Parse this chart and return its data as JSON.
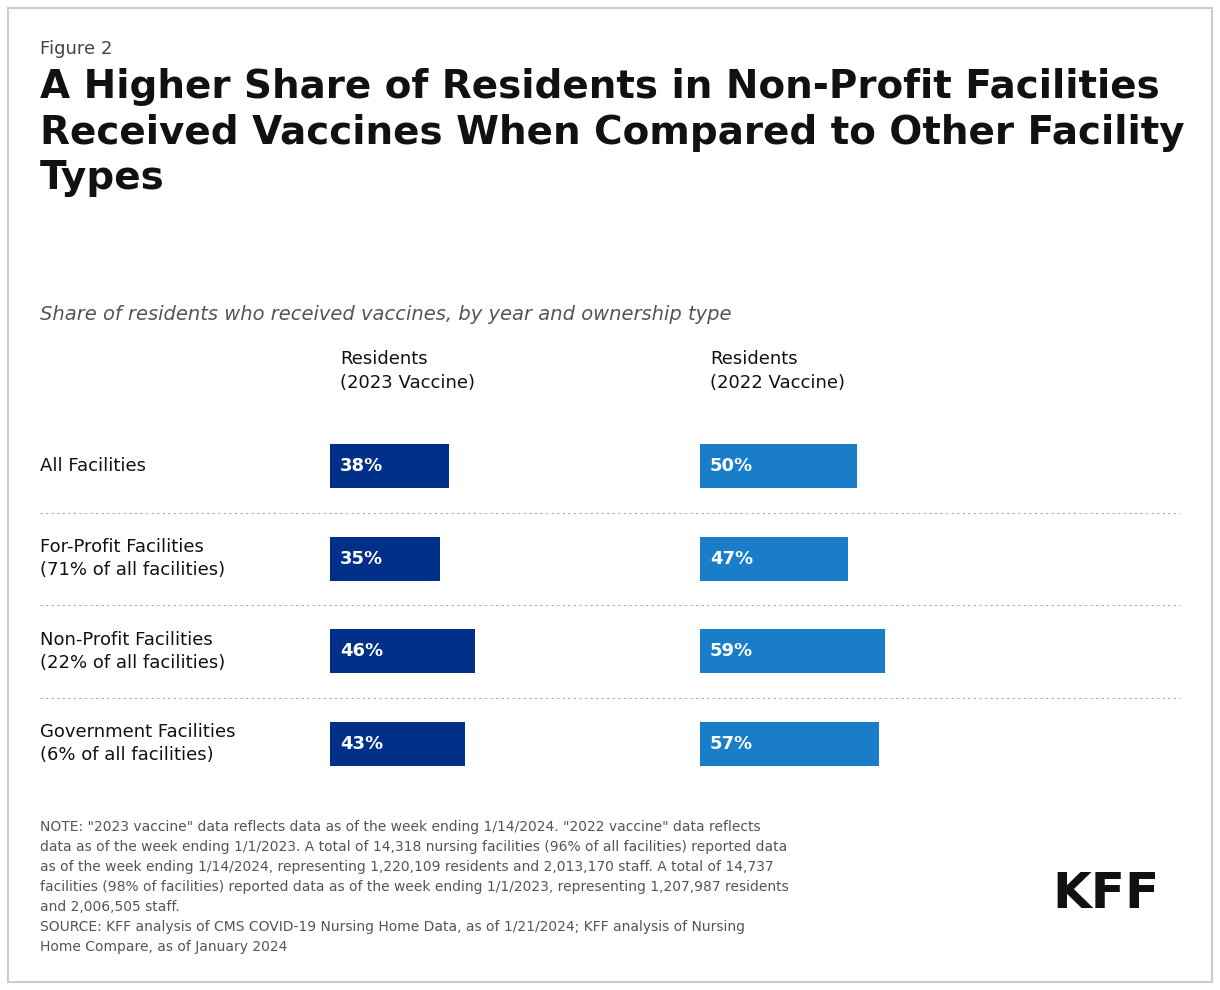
{
  "figure_label": "Figure 2",
  "title": "A Higher Share of Residents in Non-Profit Facilities\nReceived Vaccines When Compared to Other Facility\nTypes",
  "subtitle": "Share of residents who received vaccines, by year and ownership type",
  "categories": [
    "All Facilities",
    "For-Profit Facilities\n(71% of all facilities)",
    "Non-Profit Facilities\n(22% of all facilities)",
    "Government Facilities\n(6% of all facilities)"
  ],
  "col1_label": "Residents\n(2023 Vaccine)",
  "col2_label": "Residents\n(2022 Vaccine)",
  "values_2023": [
    38,
    35,
    46,
    43
  ],
  "values_2022": [
    50,
    47,
    59,
    57
  ],
  "labels_2023": [
    "38%",
    "35%",
    "46%",
    "43%"
  ],
  "labels_2022": [
    "50%",
    "47%",
    "59%",
    "57%"
  ],
  "color_2023": "#003087",
  "color_2022": "#1a7dc9",
  "background_color": "#ffffff",
  "note_text": "NOTE: \"2023 vaccine\" data reflects data as of the week ending 1/14/2024. \"2022 vaccine\" data reflects\ndata as of the week ending 1/1/2023. A total of 14,318 nursing facilities (96% of all facilities) reported data\nas of the week ending 1/14/2024, representing 1,220,109 residents and 2,013,170 staff. A total of 14,737\nfacilities (98% of facilities) reported data as of the week ending 1/1/2023, representing 1,207,987 residents\nand 2,006,505 staff.\nSOURCE: KFF analysis of CMS COVID-19 Nursing Home Data, as of 1/21/2024; KFF analysis of Nursing\nHome Compare, as of January 2024",
  "bar_max": 70,
  "title_fontsize": 28,
  "subtitle_fontsize": 14,
  "label_fontsize": 13,
  "bar_label_fontsize": 13,
  "note_fontsize": 10
}
